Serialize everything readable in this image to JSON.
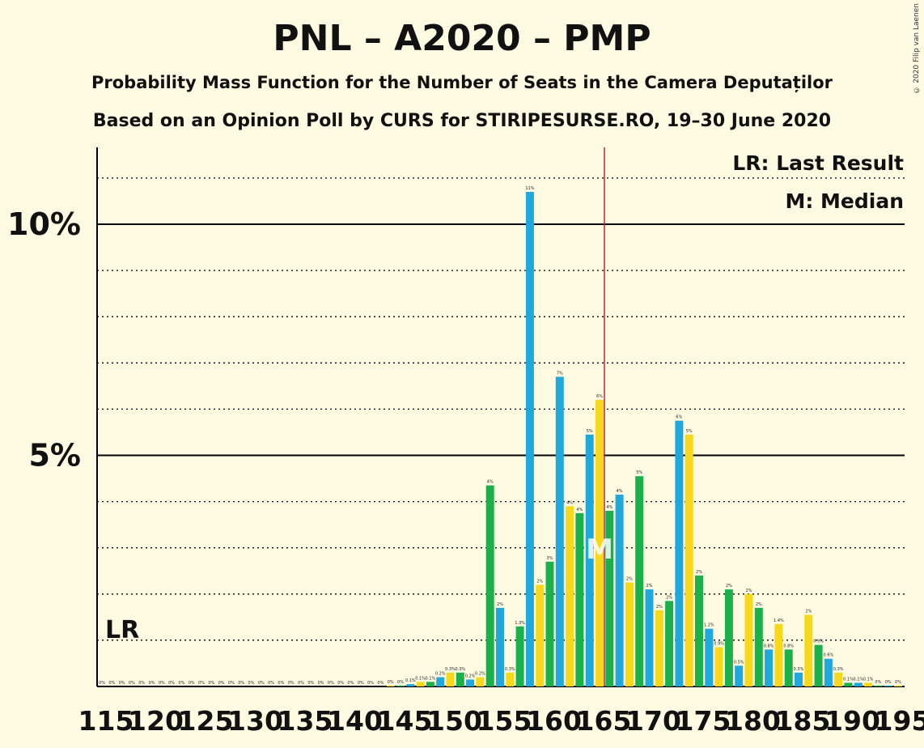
{
  "title": "PNL – A2020 – PMP",
  "subtitle1": "Probability Mass Function for the Number of Seats in the Camera Deputaților",
  "subtitle2": "Based on an Opinion Poll by CURS for STIRIPESURSE.RO, 19–30 June 2020",
  "credit": "© 2020 Filip van Laenen",
  "legend": {
    "lr": "LR: Last Result",
    "m": "M: Median"
  },
  "markers": {
    "lr_label": "LR",
    "median_label": "M"
  },
  "colors": {
    "background": "#fffbe3",
    "green": "#1ab04a",
    "blue": "#1fa8dc",
    "yellow": "#f7d81a",
    "median_line": "#c0262c",
    "axis": "#000000"
  },
  "chart_data": {
    "type": "bar",
    "x": [
      115,
      116,
      117,
      118,
      119,
      120,
      121,
      122,
      123,
      124,
      125,
      126,
      127,
      128,
      129,
      130,
      131,
      132,
      133,
      134,
      135,
      136,
      137,
      138,
      139,
      140,
      141,
      142,
      143,
      144,
      145,
      146,
      147,
      148,
      149,
      150,
      151,
      152,
      153,
      154,
      155,
      156,
      157,
      158,
      159,
      160,
      161,
      162,
      163,
      164,
      165,
      166,
      167,
      168,
      169,
      170,
      171,
      172,
      173,
      174,
      175,
      176,
      177,
      178,
      179,
      180,
      181,
      182,
      183,
      184,
      185,
      186,
      187,
      188,
      189,
      190,
      191,
      192,
      193,
      194,
      195
    ],
    "values": [
      0,
      0,
      0,
      0,
      0,
      0,
      0,
      0,
      0,
      0,
      0,
      0,
      0,
      0,
      0,
      0,
      0,
      0,
      0,
      0,
      0,
      0,
      0,
      0,
      0,
      0,
      0,
      0,
      0,
      0.02,
      0.02,
      0.05,
      0.1,
      0.1,
      0.2,
      0.3,
      0.3,
      0.15,
      0.2,
      4.35,
      1.7,
      0.3,
      1.3,
      10.7,
      2.2,
      2.7,
      6.7,
      3.9,
      3.75,
      5.45,
      6.2,
      3.8,
      4.15,
      2.25,
      4.55,
      2.1,
      1.65,
      1.85,
      5.75,
      5.45,
      2.4,
      1.25,
      0.85,
      2.1,
      0.45,
      2.0,
      1.7,
      0.8,
      1.35,
      0.8,
      0.3,
      1.55,
      0.9,
      0.6,
      0.3,
      0.08,
      0.08,
      0.08,
      0.02,
      0.02,
      0.02
    ],
    "labels": [
      "0%",
      "0%",
      "0%",
      "0%",
      "0%",
      "0%",
      "0%",
      "0%",
      "0%",
      "0%",
      "0%",
      "0%",
      "0%",
      "0%",
      "0%",
      "0%",
      "0%",
      "0%",
      "0%",
      "0%",
      "0%",
      "0%",
      "0%",
      "0%",
      "0%",
      "0%",
      "0%",
      "0%",
      "0%",
      "0%",
      "0%",
      "0.1%",
      "0.1%",
      "0.1%",
      "0.2%",
      "0.3%",
      "0.3%",
      "0.2%",
      "0.2%",
      "4%",
      "2%",
      "0.3%",
      "1.3%",
      "11%",
      "2%",
      "3%",
      "7%",
      "4%",
      "4%",
      "5%",
      "6%",
      "4%",
      "4%",
      "2%",
      "5%",
      "2%",
      "2%",
      "2%",
      "6%",
      "5%",
      "2%",
      "1.2%",
      "0.9%",
      "2%",
      "0.5%",
      "2%",
      "2%",
      "0.8%",
      "1.4%",
      "0.8%",
      "0.3%",
      "2%",
      "0.9%",
      "0.6%",
      "0.3%",
      "0.1%",
      "0.1%",
      "0.1%",
      "0%",
      "0%",
      "0%"
    ],
    "tick_labels": [
      "115",
      "120",
      "125",
      "130",
      "135",
      "140",
      "145",
      "150",
      "155",
      "160",
      "165",
      "170",
      "175",
      "180",
      "185",
      "190",
      "195"
    ],
    "y_tick_labels": [
      "5%",
      "10%"
    ],
    "ylim": [
      0,
      11.6
    ],
    "median_seat": 165,
    "last_result_level": 1.0,
    "grid": "dotted every 1%, solid at 5% and 10%"
  }
}
